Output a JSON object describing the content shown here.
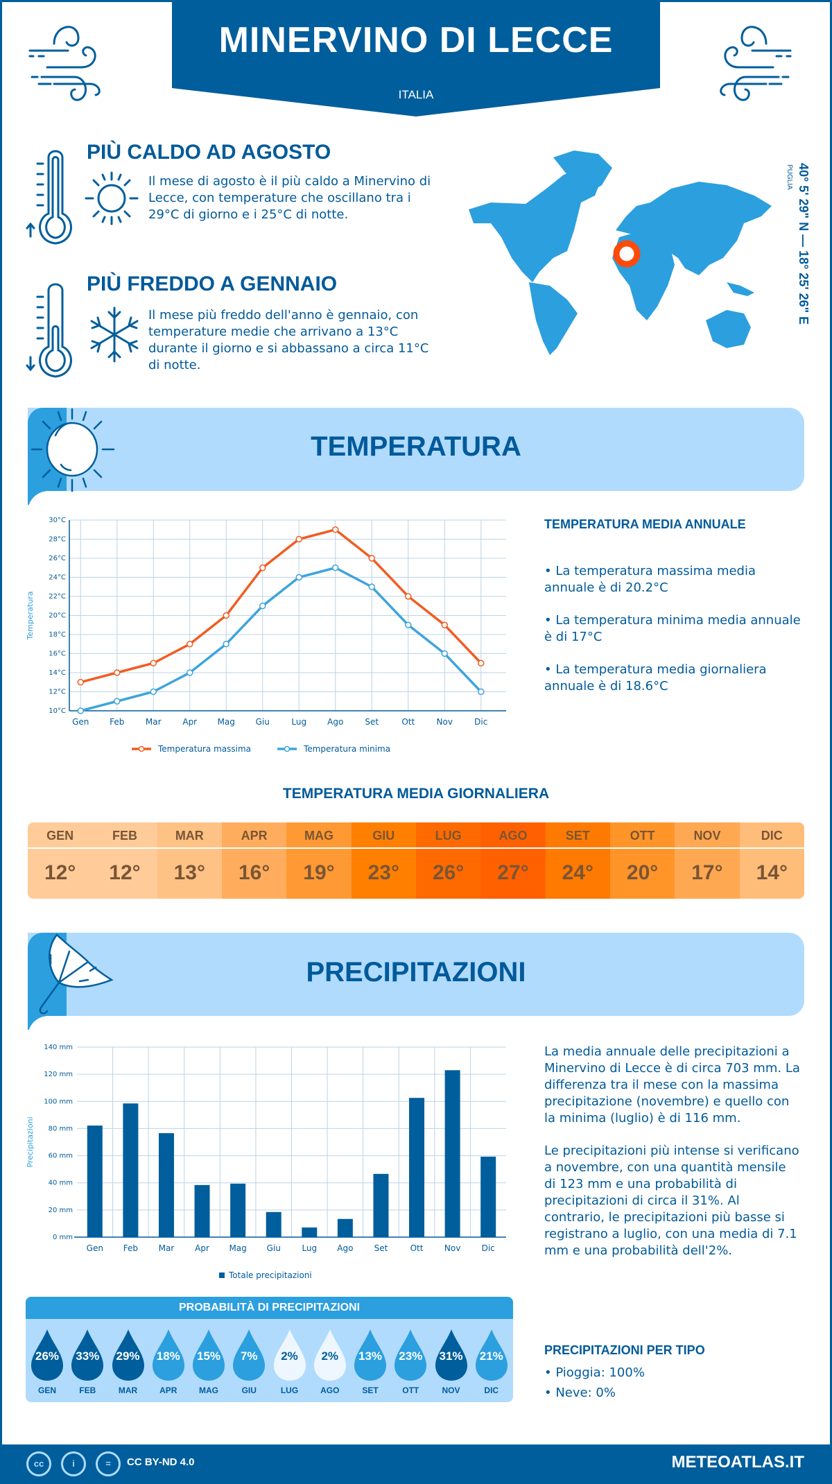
{
  "header": {
    "title": "MINERVINO DI LECCE",
    "country": "ITALIA"
  },
  "location": {
    "coordinates": "40° 5' 29\" N — 18° 25' 26\" E",
    "region": "PUGLIA"
  },
  "highlights": {
    "hottest": {
      "title": "PIÙ CALDO AD AGOSTO",
      "text": "Il mese di agosto è il più caldo a Minervino di Lecce, con temperature che oscillano tra i 29°C di giorno e i 25°C di notte."
    },
    "coldest": {
      "title": "PIÙ FREDDO A GENNAIO",
      "text": "Il mese più freddo dell'anno è gennaio, con temperature medie che arrivano a 13°C durante il giorno e si abbassano a circa 11°C di notte."
    }
  },
  "temperature": {
    "section_title": "TEMPERATURA",
    "annual_title": "TEMPERATURA MEDIA ANNUALE",
    "annual_items": [
      "• La temperatura massima media annuale è di 20.2°C",
      "• La temperatura minima media annuale è di 17°C",
      "• La temperatura media giornaliera annuale è di 18.6°C"
    ],
    "daily_title": "TEMPERATURA MEDIA GIORNALIERA",
    "daily": [
      {
        "month": "GEN",
        "value": "12°",
        "color": "#ffcc99"
      },
      {
        "month": "FEB",
        "value": "12°",
        "color": "#ffcc99"
      },
      {
        "month": "MAR",
        "value": "13°",
        "color": "#ffc285"
      },
      {
        "month": "APR",
        "value": "16°",
        "color": "#ffad5c"
      },
      {
        "month": "MAG",
        "value": "19°",
        "color": "#ff9933"
      },
      {
        "month": "GIU",
        "value": "23°",
        "color": "#ff7f00"
      },
      {
        "month": "LUG",
        "value": "26°",
        "color": "#ff6a00"
      },
      {
        "month": "AGO",
        "value": "27°",
        "color": "#ff6100"
      },
      {
        "month": "SET",
        "value": "24°",
        "color": "#ff7a00"
      },
      {
        "month": "OTT",
        "value": "20°",
        "color": "#ff9429"
      },
      {
        "month": "NOV",
        "value": "17°",
        "color": "#ffa852"
      },
      {
        "month": "DIC",
        "value": "14°",
        "color": "#ffbd7a"
      }
    ]
  },
  "precipitation": {
    "section_title": "PRECIPITAZIONI",
    "paragraphs": [
      "La media annuale delle precipitazioni a Minervino di Lecce è di circa 703 mm. La differenza tra il mese con la massima precipitazione (novembre) e quello con la minima (luglio) è di 116 mm.",
      "Le precipitazioni più intense si verificano a novembre, con una quantità mensile di 123 mm e una probabilità di precipitazioni di circa il 31%. Al contrario, le precipitazioni più basse si registrano a luglio, con una media di 7.1 mm e una probabilità dell'2%."
    ],
    "probability_title": "PROBABILITÀ DI PRECIPITAZIONI",
    "probability": [
      {
        "month": "GEN",
        "value": "26%",
        "level": "high"
      },
      {
        "month": "FEB",
        "value": "33%",
        "level": "high"
      },
      {
        "month": "MAR",
        "value": "29%",
        "level": "high"
      },
      {
        "month": "APR",
        "value": "18%",
        "level": "mid"
      },
      {
        "month": "MAG",
        "value": "15%",
        "level": "mid"
      },
      {
        "month": "GIU",
        "value": "7%",
        "level": "mid"
      },
      {
        "month": "LUG",
        "value": "2%",
        "level": "low"
      },
      {
        "month": "AGO",
        "value": "2%",
        "level": "low"
      },
      {
        "month": "SET",
        "value": "13%",
        "level": "mid"
      },
      {
        "month": "OTT",
        "value": "23%",
        "level": "mid"
      },
      {
        "month": "NOV",
        "value": "31%",
        "level": "high"
      },
      {
        "month": "DIC",
        "value": "21%",
        "level": "mid"
      }
    ],
    "type_title": "PRECIPITAZIONI PER TIPO",
    "types": [
      "• Pioggia: 100%",
      "• Neve: 0%"
    ]
  },
  "colors": {
    "primary": "#005e9c",
    "accent": "#2c9fde",
    "light": "#b0dbfd",
    "max_line": "#f25c22",
    "min_line": "#3ea4dc",
    "marker": "#ff4a0a"
  },
  "footer": {
    "license": "CC BY-ND 4.0",
    "brand": "METEOATLAS.IT"
  },
  "chart_data": [
    {
      "type": "line",
      "title": "",
      "xlabel": "",
      "ylabel": "Temperatura",
      "categories": [
        "Gen",
        "Feb",
        "Mar",
        "Apr",
        "Mag",
        "Giu",
        "Lug",
        "Ago",
        "Set",
        "Ott",
        "Nov",
        "Dic"
      ],
      "series": [
        {
          "name": "Temperatura massima",
          "values": [
            13,
            14,
            15,
            17,
            20,
            25,
            28,
            29,
            26,
            22,
            19,
            15
          ]
        },
        {
          "name": "Temperatura minima",
          "values": [
            10,
            11,
            12,
            14,
            17,
            21,
            24,
            25,
            23,
            19,
            16,
            12
          ]
        }
      ],
      "ylim": [
        10,
        30
      ],
      "yticks": [
        "10°C",
        "12°C",
        "14°C",
        "16°C",
        "18°C",
        "20°C",
        "22°C",
        "24°C",
        "26°C",
        "28°C",
        "30°C"
      ],
      "grid": true,
      "legend": "bottom"
    },
    {
      "type": "bar",
      "title": "",
      "xlabel": "",
      "ylabel": "Precipitazioni",
      "categories": [
        "Gen",
        "Feb",
        "Mar",
        "Apr",
        "Mag",
        "Giu",
        "Lug",
        "Ago",
        "Set",
        "Ott",
        "Nov",
        "Dic"
      ],
      "series": [
        {
          "name": "Totale precipitazioni",
          "values": [
            82.2,
            98.5,
            76.6,
            38.4,
            39.4,
            18.5,
            7.1,
            13.4,
            46.6,
            102.6,
            123,
            59.3
          ]
        }
      ],
      "ylim": [
        0,
        140
      ],
      "yticks": [
        "0 mm",
        "20 mm",
        "40 mm",
        "60 mm",
        "80 mm",
        "100 mm",
        "120 mm",
        "140 mm"
      ],
      "grid": true,
      "legend": "bottom"
    }
  ]
}
